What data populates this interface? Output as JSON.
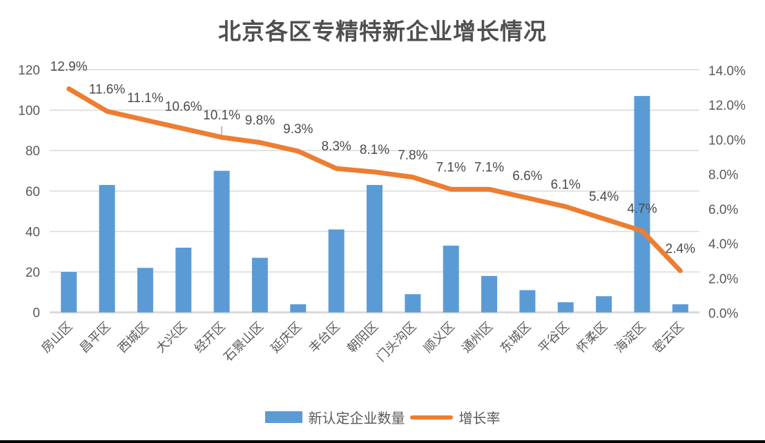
{
  "colors": {
    "bar": "#5B9BD5",
    "line": "#ED7D31",
    "grid": "#D9D9D9",
    "axis_text": "#595959",
    "data_label_text": "#4a4a4a",
    "leader_line": "#A6A6A6",
    "bottom_border": "#000000"
  },
  "chart_data": {
    "type": "combo",
    "title": "北京各区专精特新企业增长情况",
    "categories": [
      "房山区",
      "昌平区",
      "西城区",
      "大兴区",
      "经开区",
      "石景山区",
      "延庆区",
      "丰台区",
      "朝阳区",
      "门头沟区",
      "顺义区",
      "通州区",
      "东城区",
      "平谷区",
      "怀柔区",
      "海淀区",
      "密云区"
    ],
    "series": [
      {
        "name": "新认定企业数量",
        "type": "bar",
        "axis": "primary",
        "values": [
          20,
          63,
          22,
          32,
          70,
          27,
          4,
          41,
          63,
          9,
          33,
          18,
          11,
          5,
          8,
          107,
          4
        ]
      },
      {
        "name": "增长率",
        "type": "line",
        "axis": "secondary",
        "values": [
          12.9,
          11.6,
          11.1,
          10.6,
          10.1,
          9.8,
          9.3,
          8.3,
          8.1,
          7.8,
          7.1,
          7.1,
          6.6,
          6.1,
          5.4,
          4.7,
          2.4
        ],
        "labels": [
          "12.9%",
          "11.6%",
          "11.1%",
          "10.6%",
          "10.1%",
          "9.8%",
          "9.3%",
          "8.3%",
          "8.1%",
          "7.8%",
          "7.1%",
          "7.1%",
          "6.6%",
          "6.1%",
          "5.4%",
          "4.7%",
          "2.4%"
        ]
      }
    ],
    "left_axis": {
      "min": 0,
      "max": 120,
      "step": 20,
      "ticks": [
        "120",
        "100",
        "80",
        "60",
        "40",
        "20",
        "0"
      ]
    },
    "right_axis": {
      "min": 0,
      "max": 14,
      "ticks": [
        "14.0%",
        "12.0%",
        "10.0%",
        "8.0%",
        "6.0%",
        "4.0%",
        "2.0%",
        "0.0%"
      ]
    },
    "grid": true,
    "legend_position": "bottom",
    "data_label_with_leader_index": 4
  }
}
